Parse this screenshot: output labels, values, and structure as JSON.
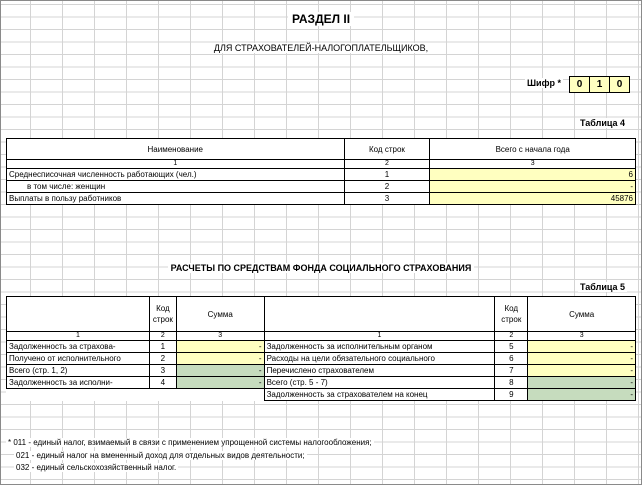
{
  "header": {
    "title": "РАЗДЕЛ II",
    "subtitle": "ДЛЯ СТРАХОВАТЕЛЕЙ-НАЛОГОПЛАТЕЛЬЩИКОВ,",
    "cipher_label": "Шифр *",
    "cipher_digits": [
      "0",
      "1",
      "0"
    ]
  },
  "table4": {
    "caption": "Таблица 4",
    "headers": [
      "Наименование",
      "Код строк",
      "Всего с начала года"
    ],
    "col_numbers": [
      "1",
      "2",
      "3"
    ],
    "rows": [
      {
        "name": "Среднесписочная численность работающих (чел.)",
        "code": "1",
        "value": "6"
      },
      {
        "name": "в том числе: женщин",
        "code": "2",
        "value": "-"
      },
      {
        "name": "Выплаты в пользу работников",
        "code": "3",
        "value": "45876"
      }
    ]
  },
  "section": {
    "title": "РАСЧЕТЫ ПО СРЕДСТВАМ ФОНДА СОЦИАЛЬНОГО СТРАХОВАНИЯ"
  },
  "table5": {
    "caption": "Таблица 5",
    "headers": {
      "code": "Код строк",
      "sum": "Сумма"
    },
    "col_numbers": [
      "1",
      "2",
      "3",
      "1",
      "2",
      "3"
    ],
    "rows": [
      {
        "left_name": "Задолженность за страхова-",
        "left_code": "1",
        "left_value": "-",
        "right_name": "Задолженность за исполнительным органом",
        "right_code": "5",
        "right_value": "-"
      },
      {
        "left_name": "Получено от исполнительного",
        "left_code": "2",
        "left_value": "-",
        "right_name": "Расходы на цели обязательного социального",
        "right_code": "6",
        "right_value": "-"
      },
      {
        "left_name": "Всего (стр. 1, 2)",
        "left_code": "3",
        "left_value": "-",
        "right_name": "Перечислено страхователем",
        "right_code": "7",
        "right_value": "-"
      },
      {
        "left_name": "Задолженность за исполни-",
        "left_code": "4",
        "left_value": "-",
        "right_name": "Всего (стр. 5 - 7)",
        "right_code": "8",
        "right_value": "-"
      },
      {
        "right_name": "Задолженность за страхователем на конец",
        "right_code": "9",
        "right_value": "-"
      }
    ]
  },
  "footnotes": [
    "* 011 - единый налог, взимаемый в связи с применением упрощенной системы налогообложения;",
    "021 - единый налог на вмененный доход для отдельных видов деятельности;",
    "032 - единый сельскохозяйственный налог."
  ],
  "colors": {
    "input_cell": "#ffffc0",
    "total_cell": "#c6dcbe",
    "grid": "#d4d4d4"
  }
}
